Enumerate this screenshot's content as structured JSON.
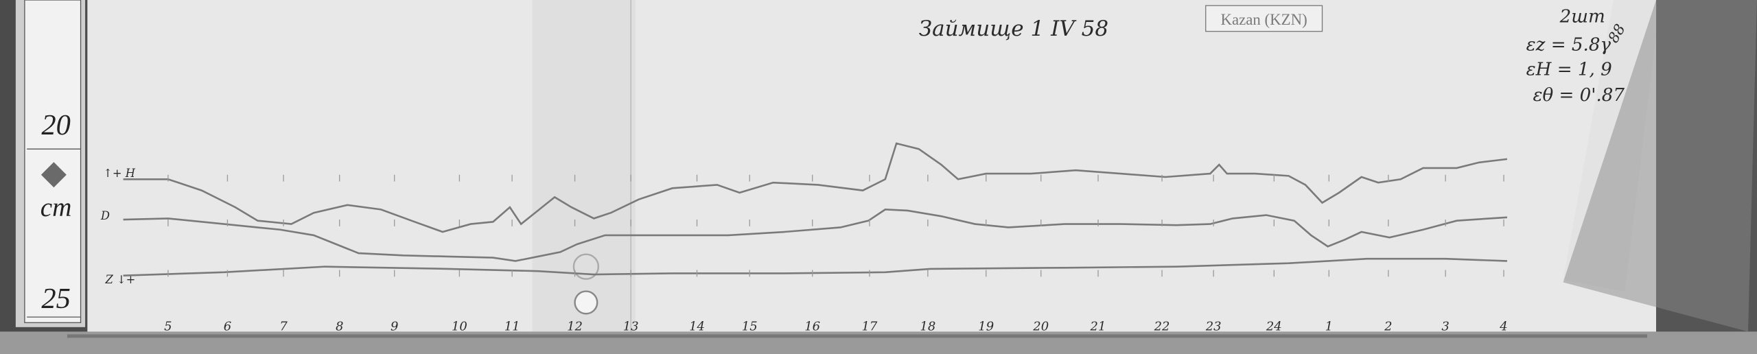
{
  "header": {
    "handwritten_title": "Займище 1 IV 58",
    "station_label": "Kazan (KZN)"
  },
  "notes": {
    "sheet": "2шт",
    "number": "88",
    "scale_z": "εz = 5.8γ",
    "scale_h": "εH = 1, 9",
    "scale_d": "εθ = 0'.87"
  },
  "ruler": {
    "top_value": "20",
    "unit": "cm",
    "bottom_value": "25"
  },
  "trace_labels": {
    "h": "↑+ H",
    "d": "D",
    "z": "Z ↓+"
  },
  "hour_labels": [
    "5",
    "6",
    "7",
    "8",
    "9",
    "10",
    "11",
    "12",
    "13",
    "14",
    "15",
    "16",
    "17",
    "18",
    "19",
    "20",
    "21",
    "22",
    "23",
    "24",
    "1",
    "2",
    "3",
    "4"
  ],
  "colors": {
    "paper": "#e6e6e6",
    "trace": "#7a7a7a",
    "background": "#4a4a4a"
  }
}
